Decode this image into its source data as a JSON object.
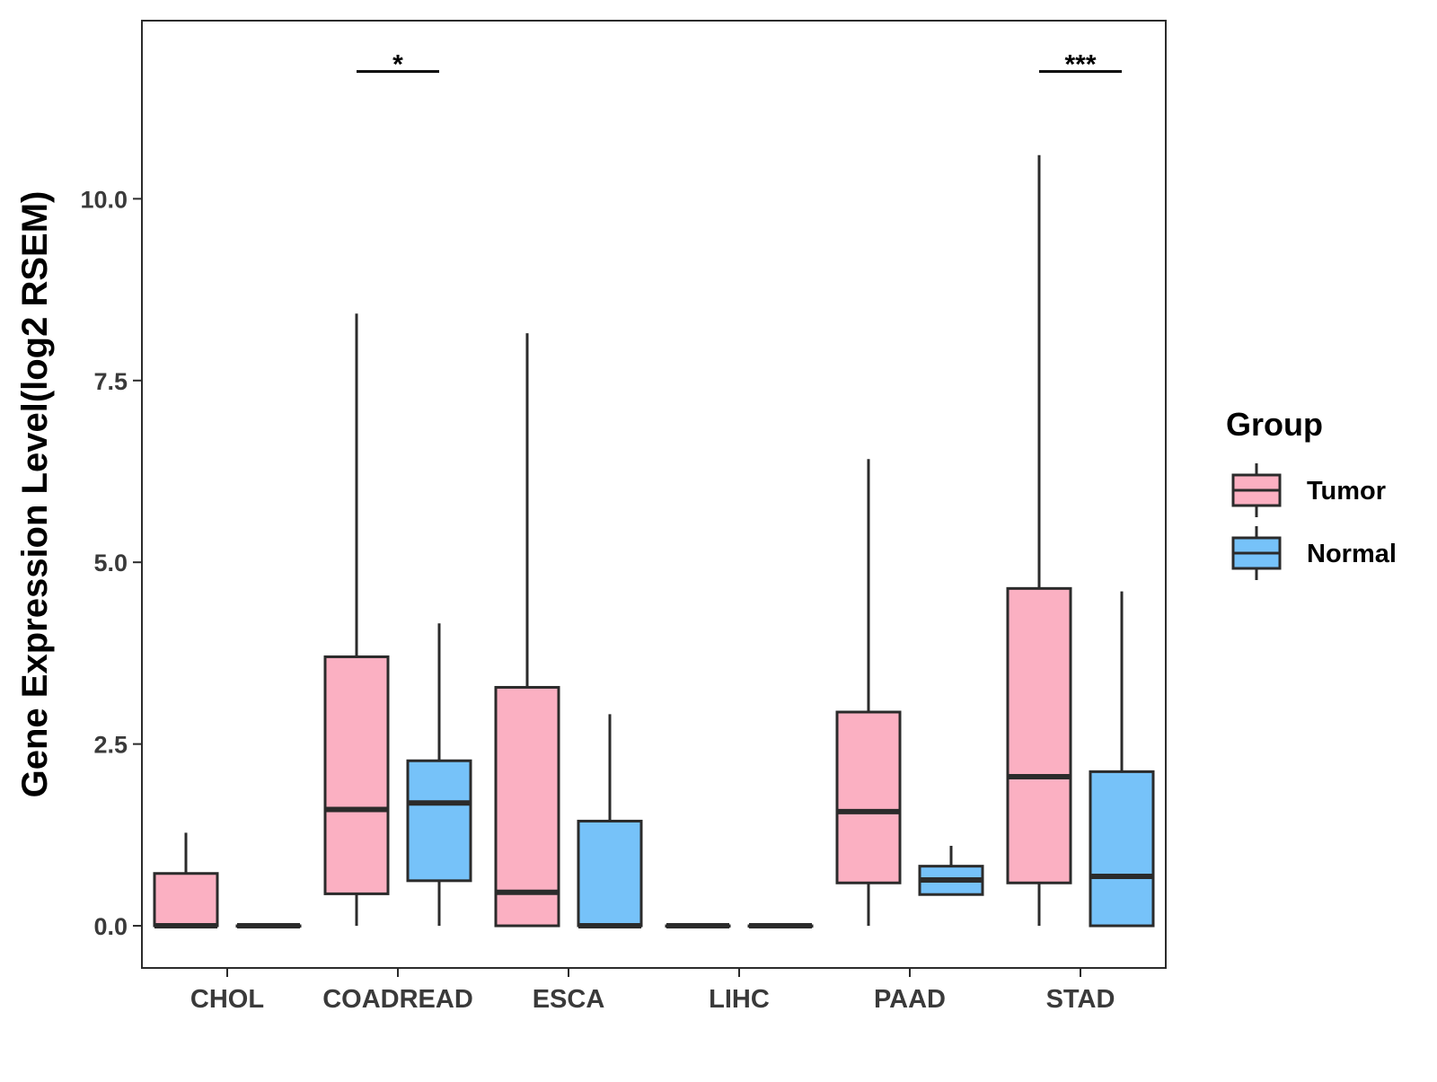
{
  "chart_data": {
    "type": "box",
    "title": "",
    "xlabel": "",
    "ylabel": "Gene Expression Level(log2 RSEM)",
    "ylim": [
      -0.58,
      12.45
    ],
    "yticks": [
      0.0,
      2.5,
      5.0,
      7.5,
      10.0
    ],
    "ytick_labels": [
      "0.0",
      "2.5",
      "5.0",
      "7.5",
      "10.0"
    ],
    "categories": [
      "CHOL",
      "COADREAD",
      "ESCA",
      "LIHC",
      "PAAD",
      "STAD"
    ],
    "grid": false,
    "legend": {
      "title": "Group",
      "position": "right",
      "entries": [
        {
          "name": "Tumor",
          "color": "#FBB0C2"
        },
        {
          "name": "Normal",
          "color": "#76C2F9"
        }
      ]
    },
    "series": [
      {
        "name": "Tumor",
        "color": "#FBB0C2",
        "boxes": [
          {
            "category": "CHOL",
            "whisker_low": 0.0,
            "q1": 0.0,
            "median": 0.0,
            "q3": 0.72,
            "whisker_high": 1.28
          },
          {
            "category": "COADREAD",
            "whisker_low": 0.0,
            "q1": 0.44,
            "median": 1.6,
            "q3": 3.7,
            "whisker_high": 8.42
          },
          {
            "category": "ESCA",
            "whisker_low": 0.0,
            "q1": 0.0,
            "median": 0.46,
            "q3": 3.28,
            "whisker_high": 8.15
          },
          {
            "category": "LIHC",
            "whisker_low": 0.0,
            "q1": 0.0,
            "median": 0.0,
            "q3": 0.0,
            "whisker_high": 0.0
          },
          {
            "category": "PAAD",
            "whisker_low": 0.0,
            "q1": 0.59,
            "median": 1.57,
            "q3": 2.94,
            "whisker_high": 6.42
          },
          {
            "category": "STAD",
            "whisker_low": 0.0,
            "q1": 0.59,
            "median": 2.05,
            "q3": 4.64,
            "whisker_high": 10.6
          }
        ]
      },
      {
        "name": "Normal",
        "color": "#76C2F9",
        "boxes": [
          {
            "category": "CHOL",
            "whisker_low": 0.0,
            "q1": 0.0,
            "median": 0.0,
            "q3": 0.0,
            "whisker_high": 0.0
          },
          {
            "category": "COADREAD",
            "whisker_low": 0.0,
            "q1": 0.62,
            "median": 1.69,
            "q3": 2.27,
            "whisker_high": 4.16
          },
          {
            "category": "ESCA",
            "whisker_low": 0.0,
            "q1": 0.0,
            "median": 0.0,
            "q3": 1.44,
            "whisker_high": 2.91
          },
          {
            "category": "LIHC",
            "whisker_low": 0.0,
            "q1": 0.0,
            "median": 0.0,
            "q3": 0.0,
            "whisker_high": 0.0
          },
          {
            "category": "PAAD",
            "whisker_low": 0.43,
            "q1": 0.43,
            "median": 0.63,
            "q3": 0.82,
            "whisker_high": 1.1
          },
          {
            "category": "STAD",
            "whisker_low": 0.0,
            "q1": 0.0,
            "median": 0.68,
            "q3": 2.12,
            "whisker_high": 4.6
          }
        ]
      }
    ],
    "annotations": [
      {
        "category": "COADREAD",
        "label": "*",
        "y": 11.75
      },
      {
        "category": "STAD",
        "label": "***",
        "y": 11.75
      }
    ]
  }
}
